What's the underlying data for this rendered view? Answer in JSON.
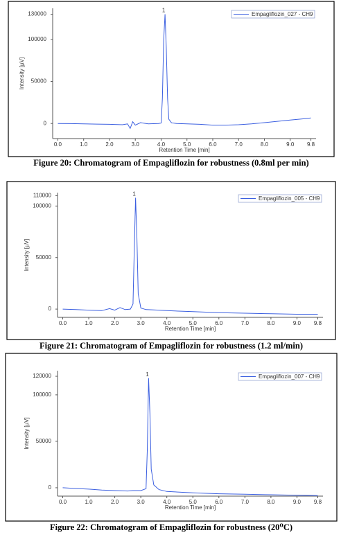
{
  "chart_data": [
    {
      "type": "line",
      "caption": "Figure 20: Chromatogram of Empagliflozin for robustness (0.8ml per min)",
      "x_label": "Retention Time [min]",
      "y_label": "Intensity [µV]",
      "legend": "upper right",
      "x": [
        0,
        0.5,
        1,
        1.5,
        2,
        2.5,
        2.7,
        2.8,
        2.9,
        3.0,
        3.2,
        3.5,
        3.9,
        4.0,
        4.05,
        4.1,
        4.15,
        4.2,
        4.25,
        4.3,
        4.4,
        4.6,
        5,
        5.5,
        6,
        6.5,
        7,
        7.5,
        8,
        8.5,
        9,
        9.5,
        9.8
      ],
      "series": [
        {
          "name": "Empagliflozin_027 - CH9",
          "color": "#3b5fe0",
          "values": [
            0,
            -200,
            -500,
            -800,
            -1000,
            -1500,
            -500,
            -6000,
            2000,
            -2000,
            1000,
            -500,
            0,
            500,
            30000,
            100000,
            130000,
            90000,
            30000,
            5000,
            800,
            0,
            -500,
            -1000,
            -2000,
            -2000,
            -1500,
            -500,
            1000,
            2500,
            4000,
            5500,
            6500
          ]
        }
      ],
      "annotations": [
        {
          "text": "1",
          "x": 4.15,
          "y": 130000
        }
      ],
      "xlim": [
        -0.2,
        10
      ],
      "ylim": [
        -18000,
        137000
      ],
      "xticks": [
        {
          "value": 0,
          "label": "0.0"
        },
        {
          "value": 1,
          "label": "1.0"
        },
        {
          "value": 2,
          "label": "2.0"
        },
        {
          "value": 3,
          "label": "3.0"
        },
        {
          "value": 4,
          "label": "4.0"
        },
        {
          "value": 5,
          "label": "5.0"
        },
        {
          "value": 6,
          "label": "6.0"
        },
        {
          "value": 7,
          "label": "7.0"
        },
        {
          "value": 8,
          "label": "8.0"
        },
        {
          "value": 9,
          "label": "9.0"
        },
        {
          "value": 9.8,
          "label": "9.8"
        }
      ],
      "yticks": [
        0,
        50000,
        100000,
        130000
      ]
    },
    {
      "type": "line",
      "caption": "Figure 21: Chromatogram of Empagliflozin for robustness (1.2 ml/min)",
      "x_label": "Retention Time [min]",
      "y_label": "Intensity [µV]",
      "legend": "upper right",
      "x": [
        0,
        0.5,
        1,
        1.5,
        1.8,
        2,
        2.2,
        2.4,
        2.6,
        2.7,
        2.75,
        2.8,
        2.85,
        2.9,
        3.0,
        3.2,
        3.5,
        4,
        5,
        6,
        7,
        8,
        9,
        9.8
      ],
      "series": [
        {
          "name": "Empagliflozin_005 - CH9",
          "color": "#3b5fe0",
          "values": [
            0,
            -500,
            -1000,
            -1500,
            500,
            -1000,
            1500,
            -500,
            0,
            5000,
            60000,
            108000,
            70000,
            15000,
            1000,
            -500,
            -800,
            -1500,
            -2500,
            -3500,
            -4000,
            -4500,
            -5000,
            -5000
          ]
        }
      ],
      "annotations": [
        {
          "text": "1",
          "x": 2.8,
          "y": 108000
        }
      ],
      "xlim": [
        -0.2,
        10
      ],
      "ylim": [
        -8000,
        113000
      ],
      "xticks": [
        {
          "value": 0,
          "label": "0.0"
        },
        {
          "value": 1,
          "label": "1.0"
        },
        {
          "value": 2,
          "label": "2.0"
        },
        {
          "value": 3,
          "label": "3.0"
        },
        {
          "value": 4,
          "label": "4.0"
        },
        {
          "value": 5,
          "label": "5.0"
        },
        {
          "value": 6,
          "label": "6.0"
        },
        {
          "value": 7,
          "label": "7.0"
        },
        {
          "value": 8,
          "label": "8.0"
        },
        {
          "value": 9,
          "label": "9.0"
        },
        {
          "value": 9.8,
          "label": "9.8"
        }
      ],
      "yticks": [
        0,
        50000,
        100000,
        110000
      ]
    },
    {
      "type": "line",
      "caption": "Figure 22: Chromatogram of Empagliflozin for robustness (20⁰C)",
      "x_label": "Retention Time [min]",
      "y_label": "Intensity [µV]",
      "legend": "upper right",
      "x": [
        0,
        0.5,
        1,
        1.5,
        2,
        2.5,
        2.7,
        3.0,
        3.2,
        3.25,
        3.3,
        3.35,
        3.4,
        3.5,
        3.7,
        4,
        5,
        6,
        7,
        8,
        9,
        9.8
      ],
      "series": [
        {
          "name": "Empagliflozin_007 - CH9",
          "color": "#3b5fe0",
          "values": [
            0,
            -800,
            -1500,
            -2500,
            -3000,
            -3500,
            -3000,
            -3000,
            -1000,
            40000,
            118000,
            80000,
            20000,
            3000,
            -2000,
            -4000,
            -5500,
            -6500,
            -7000,
            -7500,
            -8000,
            -8500
          ]
        }
      ],
      "annotations": [
        {
          "text": "1",
          "x": 3.3,
          "y": 118000
        }
      ],
      "xlim": [
        -0.2,
        10
      ],
      "ylim": [
        -9000,
        126000
      ],
      "xticks": [
        {
          "value": 0,
          "label": "0.0"
        },
        {
          "value": 1,
          "label": "1.0"
        },
        {
          "value": 2,
          "label": "2.0"
        },
        {
          "value": 3,
          "label": "3.0"
        },
        {
          "value": 4,
          "label": "4.0"
        },
        {
          "value": 5,
          "label": "5.0"
        },
        {
          "value": 6,
          "label": "6.0"
        },
        {
          "value": 7,
          "label": "7.0"
        },
        {
          "value": 8,
          "label": "8.0"
        },
        {
          "value": 9,
          "label": "9.0"
        },
        {
          "value": 9.8,
          "label": "9.8"
        }
      ],
      "yticks": [
        0,
        50000,
        100000,
        120000
      ]
    }
  ]
}
